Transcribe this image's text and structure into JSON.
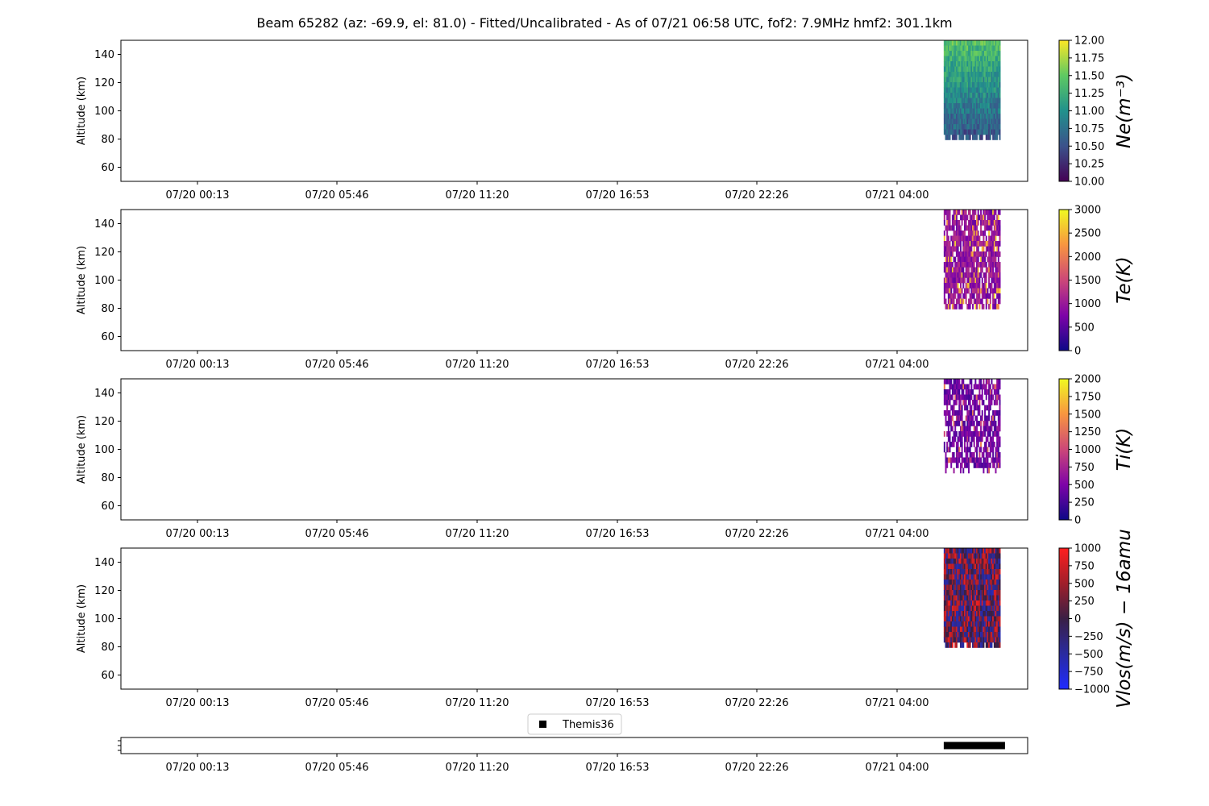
{
  "title": "Beam 65282 (az: -69.9, el: 81.0) - Fitted/Uncalibrated - As of 07/21 06:58 UTC, fof2: 7.9MHz  hmf2: 301.1km",
  "x_tick_labels": [
    "07/20 00:13",
    "07/20 05:46",
    "07/20 11:20",
    "07/20 16:53",
    "07/20 22:26",
    "07/21 04:00"
  ],
  "y_tick_labels": [
    "60",
    "80",
    "100",
    "120",
    "140"
  ],
  "ylabel": "Altitude (km)",
  "legend": {
    "label": "Themis36",
    "marker": "square",
    "color": "#000000"
  },
  "chart_data": [
    {
      "type": "heatmap",
      "name": "Ne",
      "colorbar_label": "Ne(m⁻³)",
      "colormap": "viridis",
      "clim": [
        10.0,
        12.0
      ],
      "colorbar_ticks": [
        "10.00",
        "10.25",
        "10.50",
        "10.75",
        "11.00",
        "11.25",
        "11.50",
        "11.75",
        "12.00"
      ],
      "ylim": [
        50,
        150
      ],
      "data_time_range": [
        "07/21 05:50",
        "07/21 08:05"
      ],
      "data_altitude_range": [
        80,
        150
      ]
    },
    {
      "type": "heatmap",
      "name": "Te",
      "colorbar_label": "Te(K)",
      "colormap": "plasma",
      "clim": [
        0,
        3000
      ],
      "colorbar_ticks": [
        "0",
        "500",
        "1000",
        "1500",
        "2000",
        "2500",
        "3000"
      ],
      "ylim": [
        50,
        150
      ],
      "data_time_range": [
        "07/21 05:50",
        "07/21 08:05"
      ],
      "data_altitude_range": [
        80,
        150
      ]
    },
    {
      "type": "heatmap",
      "name": "Ti",
      "colorbar_label": "Ti(K)",
      "colormap": "plasma",
      "clim": [
        0,
        2000
      ],
      "colorbar_ticks": [
        "0",
        "250",
        "500",
        "750",
        "1000",
        "1250",
        "1500",
        "1750",
        "2000"
      ],
      "ylim": [
        50,
        150
      ],
      "data_time_range": [
        "07/21 05:50",
        "07/21 08:05"
      ],
      "data_altitude_range": [
        82,
        150
      ]
    },
    {
      "type": "heatmap",
      "name": "Vlos",
      "colorbar_label": "Vlos(m/s) − 16amu",
      "colormap": "bwr-dark",
      "clim": [
        -1000,
        1000
      ],
      "colorbar_ticks": [
        "−1000",
        "−750",
        "−500",
        "−250",
        "0",
        "250",
        "500",
        "750",
        "1000"
      ],
      "ylim": [
        50,
        150
      ],
      "data_time_range": [
        "07/21 05:50",
        "07/21 08:05"
      ],
      "data_altitude_range": [
        80,
        150
      ]
    },
    {
      "type": "scatter",
      "name": "Themis36",
      "marker": "square",
      "color": "#000000",
      "data_time_range": [
        "07/21 05:50",
        "07/21 08:05"
      ]
    }
  ]
}
